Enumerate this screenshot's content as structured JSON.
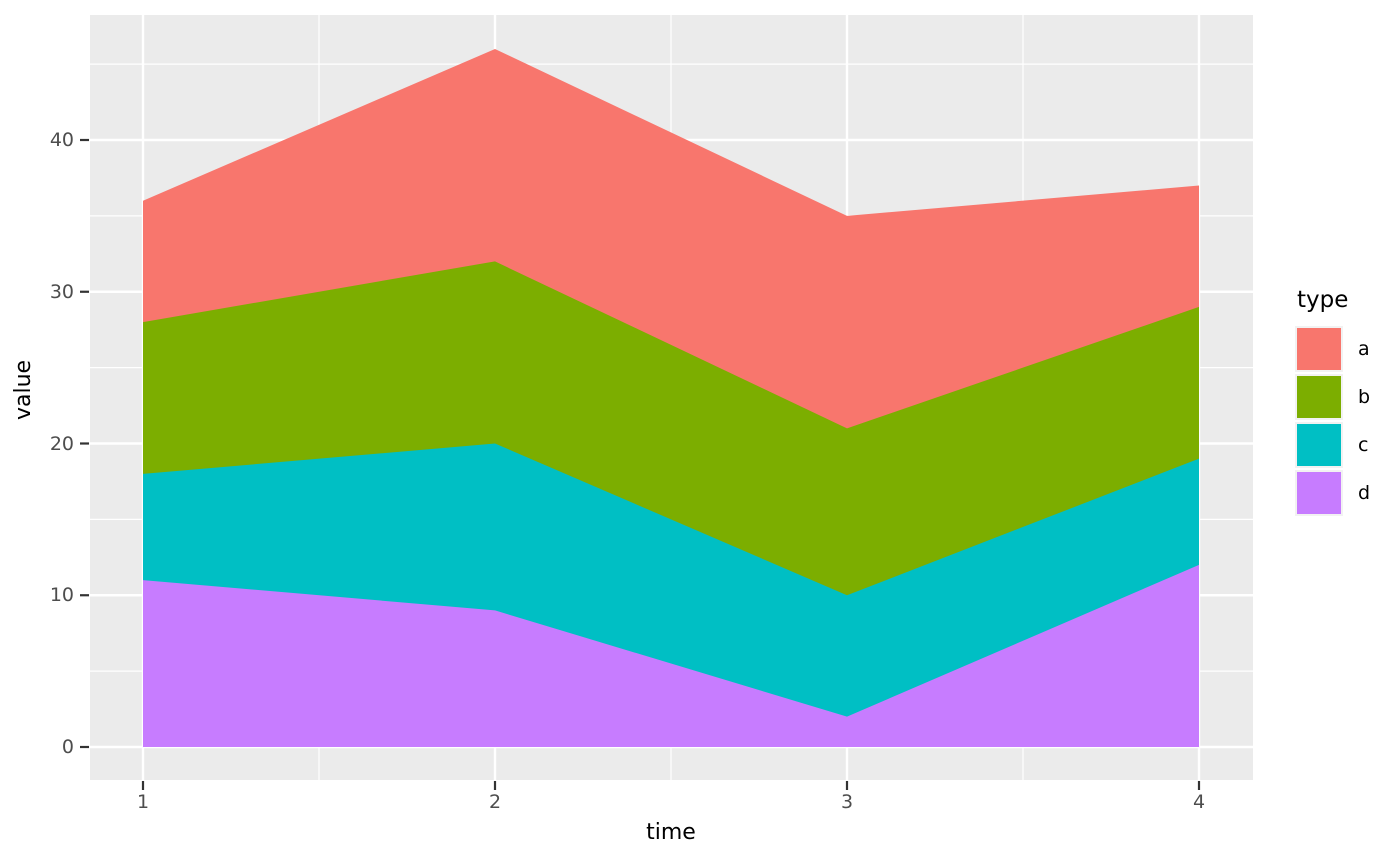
{
  "chart_data": {
    "type": "area",
    "stacked": true,
    "xlabel": "time",
    "ylabel": "value",
    "x": [
      1,
      2,
      3,
      4
    ],
    "series": [
      {
        "name": "a",
        "color": "#F8766D",
        "values": [
          8,
          14,
          14,
          8
        ]
      },
      {
        "name": "b",
        "color": "#7CAE00",
        "values": [
          10,
          12,
          11,
          10
        ]
      },
      {
        "name": "c",
        "color": "#00BFC4",
        "values": [
          7,
          11,
          8,
          7
        ]
      },
      {
        "name": "d",
        "color": "#C77CFF",
        "values": [
          11,
          9,
          2,
          12
        ]
      }
    ],
    "stack_order_bottom_to_top": [
      "d",
      "c",
      "b",
      "a"
    ],
    "cumulative_tops": {
      "a": [
        36,
        46,
        35,
        37
      ],
      "b": [
        28,
        32,
        21,
        29
      ],
      "c": [
        18,
        20,
        10,
        19
      ],
      "d": [
        11,
        9,
        2,
        12
      ]
    },
    "x_ticks": [
      "1",
      "2",
      "3",
      "4"
    ],
    "y_ticks": [
      "0",
      "10",
      "20",
      "30",
      "40"
    ],
    "x_minor_ticks": [
      1.5,
      2.5,
      3.5
    ],
    "y_minor_ticks": [
      5,
      15,
      25,
      35,
      45
    ],
    "xlim": [
      1,
      4
    ],
    "ylim": [
      0,
      46
    ],
    "grid": "major-and-minor",
    "legend_position": "right"
  },
  "legend": {
    "title": "type",
    "entries": [
      {
        "label": "a",
        "color": "#F8766D"
      },
      {
        "label": "b",
        "color": "#7CAE00"
      },
      {
        "label": "c",
        "color": "#00BFC4"
      },
      {
        "label": "d",
        "color": "#C77CFF"
      }
    ]
  },
  "theme": {
    "panel_bg": "#EBEBEB",
    "grid_color": "#FFFFFF",
    "tick_mark_color": "#333333",
    "tick_label_color": "#4D4D4D",
    "axis_title_color": "#000000",
    "legend_key_bg": "#F2F2F2"
  }
}
